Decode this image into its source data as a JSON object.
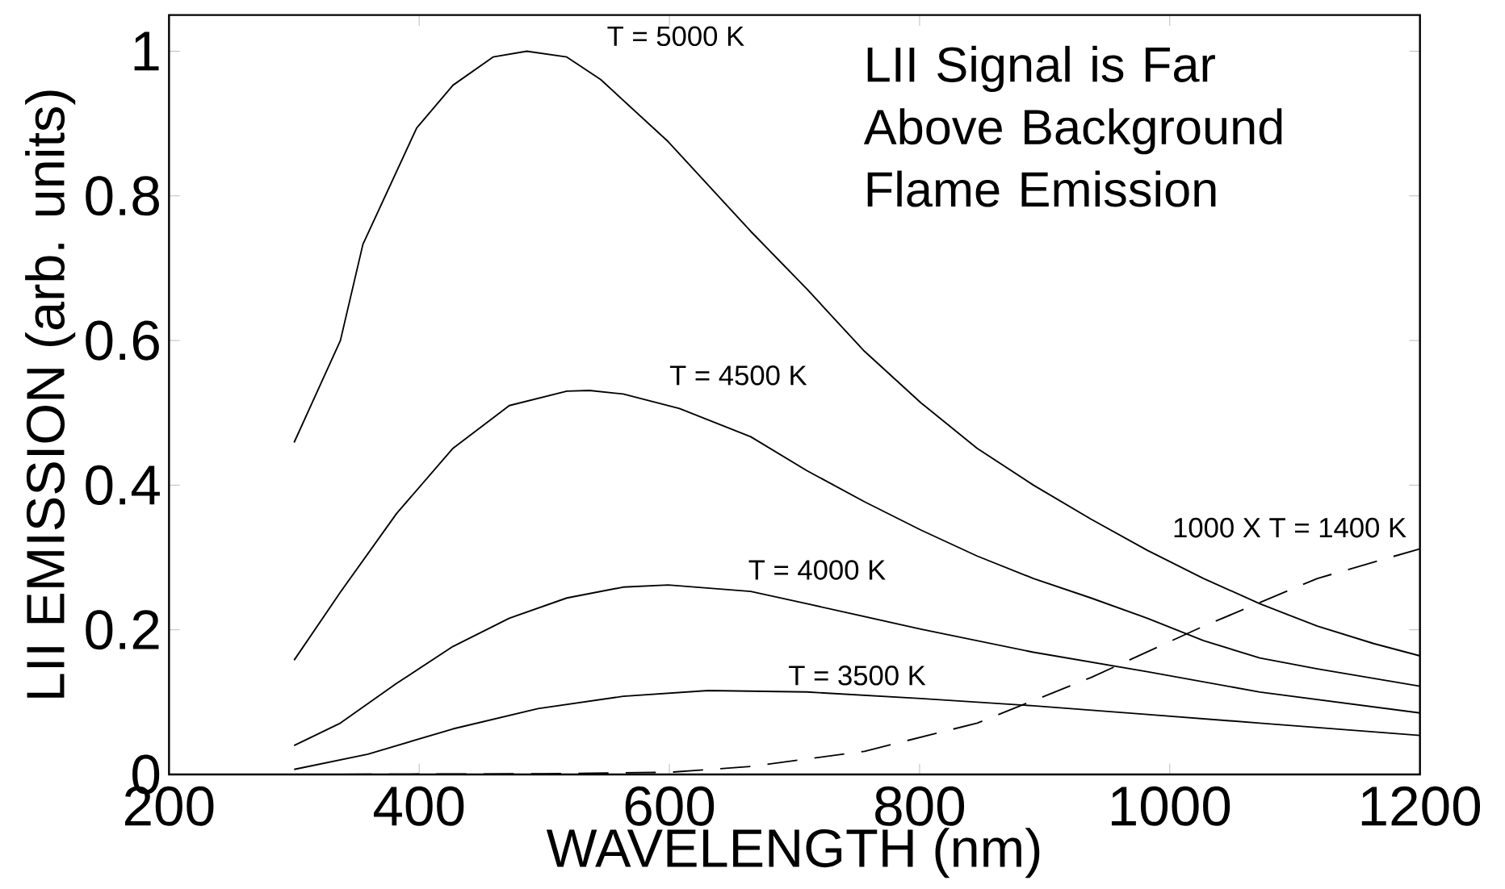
{
  "chart_data": {
    "type": "line",
    "xlabel": "WAVELENGTH (nm)",
    "ylabel": "LII EMISSION (arb. units)",
    "xlim": [
      200,
      1200
    ],
    "ylim": [
      0,
      1.05
    ],
    "xticks": [
      200,
      400,
      600,
      800,
      1000,
      1200
    ],
    "yticks": [
      0,
      0.2,
      0.4,
      0.6,
      0.8,
      1
    ],
    "grid": false,
    "legend": false,
    "marker": "none",
    "series": [
      {
        "name": "T = 5000 K",
        "color": "#000000",
        "line_style": "solid",
        "x": [
          300,
          337,
          355,
          398,
          427,
          459,
          486,
          518,
          545,
          599,
          665,
          710,
          756,
          801,
          846,
          891,
          937,
          982,
          1027,
          1072,
          1118,
          1163,
          1200
        ],
        "values": [
          0.459,
          0.6,
          0.733,
          0.894,
          0.953,
          0.992,
          1.0,
          0.992,
          0.961,
          0.875,
          0.751,
          0.671,
          0.585,
          0.514,
          0.451,
          0.4,
          0.353,
          0.31,
          0.271,
          0.236,
          0.205,
          0.181,
          0.164
        ]
      },
      {
        "name": "T = 4500 K",
        "color": "#000000",
        "line_style": "solid",
        "x": [
          300,
          337,
          382,
          427,
          472,
          518,
          536,
          563,
          608,
          665,
          710,
          756,
          801,
          846,
          891,
          937,
          982,
          1027,
          1072,
          1118,
          1200
        ],
        "values": [
          0.158,
          0.252,
          0.361,
          0.451,
          0.51,
          0.53,
          0.531,
          0.526,
          0.506,
          0.467,
          0.42,
          0.377,
          0.338,
          0.302,
          0.271,
          0.244,
          0.216,
          0.185,
          0.161,
          0.146,
          0.122
        ]
      },
      {
        "name": "T = 4000 K",
        "color": "#000000",
        "line_style": "solid",
        "x": [
          300,
          337,
          382,
          427,
          472,
          518,
          563,
          599,
          665,
          710,
          801,
          891,
          982,
          1072,
          1200
        ],
        "values": [
          0.04,
          0.071,
          0.126,
          0.177,
          0.216,
          0.244,
          0.259,
          0.262,
          0.253,
          0.236,
          0.201,
          0.169,
          0.142,
          0.114,
          0.085
        ]
      },
      {
        "name": "T = 3500 K",
        "color": "#000000",
        "line_style": "solid",
        "x": [
          300,
          359,
          427,
          495,
          563,
          631,
          710,
          801,
          891,
          982,
          1072,
          1200
        ],
        "values": [
          0.007,
          0.028,
          0.063,
          0.091,
          0.108,
          0.116,
          0.114,
          0.105,
          0.095,
          0.083,
          0.071,
          0.054
        ]
      },
      {
        "name": "1000 X T = 1400 K",
        "color": "#000000",
        "line_style": "dashed",
        "x": [
          300,
          500,
          600,
          665,
          756,
          846,
          937,
          1027,
          1118,
          1200
        ],
        "values": [
          0.0,
          0.001,
          0.003,
          0.011,
          0.032,
          0.071,
          0.134,
          0.205,
          0.271,
          0.312
        ]
      }
    ],
    "annotations": [
      "LII Signal is Far Above Background Flame Emission"
    ]
  }
}
